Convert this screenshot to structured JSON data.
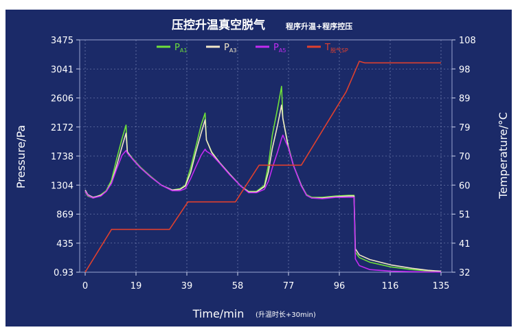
{
  "chart_data": {
    "type": "line",
    "title": "压控升温真空脱气",
    "subtitle": "程序升温+程序控压",
    "xlabel": "Time/min",
    "xlabel_note": "(升温时长+30min)",
    "ylabel_left": "Pressure/Pa",
    "ylabel_right": "Temperature/°C",
    "xlim": [
      0,
      135
    ],
    "ylim_left": [
      0.93,
      3475
    ],
    "ylim_right": [
      32,
      108
    ],
    "x_ticks": [
      "0",
      "19",
      "39",
      "58",
      "77",
      "96",
      "116",
      "135"
    ],
    "y_left_ticks": [
      "0.93",
      "435",
      "869",
      "1304",
      "1738",
      "2172",
      "2606",
      "3041",
      "3475"
    ],
    "y_right_ticks": [
      "32",
      "41",
      "51",
      "60",
      "70",
      "79",
      "89",
      "98",
      "108"
    ],
    "grid": true,
    "legend_position": "top",
    "colors": {
      "background": "#1b2a68",
      "grid": "#8a96c4",
      "axis_text": "#ffffff",
      "pa1": "#6fe03a",
      "pa3": "#f2e7c8",
      "pa5": "#c32cf2",
      "temp": "#e0402e"
    },
    "series": [
      {
        "name": "PA1",
        "label_main": "P",
        "label_sub": "A1",
        "axis": "left",
        "color": "#6fe03a",
        "points": [
          [
            0,
            1200
          ],
          [
            1,
            1140
          ],
          [
            3,
            1110
          ],
          [
            6,
            1160
          ],
          [
            8,
            1220
          ],
          [
            10,
            1380
          ],
          [
            12,
            1700
          ],
          [
            14,
            2000
          ],
          [
            15.5,
            2200
          ],
          [
            16,
            1800
          ],
          [
            18,
            1700
          ],
          [
            21,
            1570
          ],
          [
            25,
            1430
          ],
          [
            29,
            1300
          ],
          [
            33,
            1230
          ],
          [
            36,
            1250
          ],
          [
            38,
            1300
          ],
          [
            40,
            1560
          ],
          [
            42,
            1880
          ],
          [
            44,
            2200
          ],
          [
            45.5,
            2380
          ],
          [
            46,
            1980
          ],
          [
            48,
            1800
          ],
          [
            51,
            1640
          ],
          [
            55,
            1460
          ],
          [
            59,
            1290
          ],
          [
            62,
            1210
          ],
          [
            65,
            1210
          ],
          [
            68,
            1300
          ],
          [
            69.5,
            1600
          ],
          [
            71,
            2050
          ],
          [
            73,
            2450
          ],
          [
            74.5,
            2780
          ],
          [
            75,
            2300
          ],
          [
            77,
            1900
          ],
          [
            79,
            1600
          ],
          [
            82,
            1300
          ],
          [
            84,
            1160
          ],
          [
            86,
            1120
          ],
          [
            90,
            1120
          ],
          [
            95,
            1140
          ],
          [
            100,
            1150
          ],
          [
            102,
            1150
          ],
          [
            102.5,
            300
          ],
          [
            104,
            220
          ],
          [
            108,
            150
          ],
          [
            116,
            80
          ],
          [
            124,
            40
          ],
          [
            130,
            20
          ],
          [
            135,
            10
          ]
        ]
      },
      {
        "name": "PA3",
        "label_main": "P",
        "label_sub": "A3",
        "axis": "left",
        "color": "#f2e7c8",
        "points": [
          [
            0,
            1230
          ],
          [
            1,
            1160
          ],
          [
            3,
            1120
          ],
          [
            6,
            1150
          ],
          [
            8,
            1210
          ],
          [
            10,
            1340
          ],
          [
            12,
            1600
          ],
          [
            14,
            1880
          ],
          [
            15.5,
            2080
          ],
          [
            16,
            1800
          ],
          [
            18,
            1690
          ],
          [
            21,
            1560
          ],
          [
            25,
            1420
          ],
          [
            29,
            1300
          ],
          [
            33,
            1230
          ],
          [
            36,
            1240
          ],
          [
            38,
            1290
          ],
          [
            40,
            1490
          ],
          [
            42,
            1800
          ],
          [
            44,
            2080
          ],
          [
            45.5,
            2280
          ],
          [
            46,
            1980
          ],
          [
            48,
            1790
          ],
          [
            51,
            1640
          ],
          [
            55,
            1460
          ],
          [
            59,
            1290
          ],
          [
            62,
            1200
          ],
          [
            65,
            1200
          ],
          [
            68,
            1280
          ],
          [
            69.5,
            1500
          ],
          [
            71,
            1850
          ],
          [
            73,
            2200
          ],
          [
            74.5,
            2500
          ],
          [
            75,
            2300
          ],
          [
            77,
            1880
          ],
          [
            79,
            1600
          ],
          [
            82,
            1300
          ],
          [
            84,
            1150
          ],
          [
            86,
            1110
          ],
          [
            90,
            1110
          ],
          [
            95,
            1130
          ],
          [
            100,
            1140
          ],
          [
            102,
            1140
          ],
          [
            102.5,
            350
          ],
          [
            104,
            260
          ],
          [
            108,
            190
          ],
          [
            116,
            110
          ],
          [
            124,
            60
          ],
          [
            130,
            30
          ],
          [
            135,
            15
          ]
        ]
      },
      {
        "name": "PA5",
        "label_main": "P",
        "label_sub": "A5",
        "axis": "left",
        "color": "#c32cf2",
        "points": [
          [
            0,
            1210
          ],
          [
            1,
            1150
          ],
          [
            3,
            1110
          ],
          [
            6,
            1140
          ],
          [
            8,
            1210
          ],
          [
            10,
            1330
          ],
          [
            12,
            1550
          ],
          [
            14,
            1750
          ],
          [
            15.5,
            1820
          ],
          [
            16,
            1780
          ],
          [
            18,
            1690
          ],
          [
            21,
            1560
          ],
          [
            25,
            1420
          ],
          [
            29,
            1300
          ],
          [
            33,
            1220
          ],
          [
            36,
            1220
          ],
          [
            38,
            1250
          ],
          [
            40,
            1400
          ],
          [
            42,
            1580
          ],
          [
            44,
            1750
          ],
          [
            45.5,
            1840
          ],
          [
            46,
            1810
          ],
          [
            48,
            1760
          ],
          [
            51,
            1630
          ],
          [
            55,
            1450
          ],
          [
            59,
            1290
          ],
          [
            62,
            1190
          ],
          [
            65,
            1190
          ],
          [
            68,
            1240
          ],
          [
            69.5,
            1360
          ],
          [
            71,
            1560
          ],
          [
            73,
            1800
          ],
          [
            74.5,
            2000
          ],
          [
            75,
            2050
          ],
          [
            77,
            1870
          ],
          [
            79,
            1600
          ],
          [
            82,
            1290
          ],
          [
            84,
            1150
          ],
          [
            86,
            1110
          ],
          [
            90,
            1100
          ],
          [
            95,
            1120
          ],
          [
            100,
            1120
          ],
          [
            102,
            1120
          ],
          [
            102.5,
            200
          ],
          [
            104,
            100
          ],
          [
            108,
            40
          ],
          [
            116,
            15
          ],
          [
            124,
            8
          ],
          [
            130,
            5
          ],
          [
            135,
            3
          ]
        ]
      },
      {
        "name": "T",
        "label_main": "T",
        "label_sub": "脱气SP",
        "axis": "right",
        "color": "#e0402e",
        "points": [
          [
            0,
            32
          ],
          [
            10,
            46
          ],
          [
            32,
            46
          ],
          [
            39,
            55
          ],
          [
            57,
            55
          ],
          [
            66,
            67
          ],
          [
            82,
            67
          ],
          [
            99,
            91
          ],
          [
            104,
            101
          ],
          [
            106,
            100.5
          ],
          [
            135,
            100.5
          ]
        ]
      }
    ]
  }
}
